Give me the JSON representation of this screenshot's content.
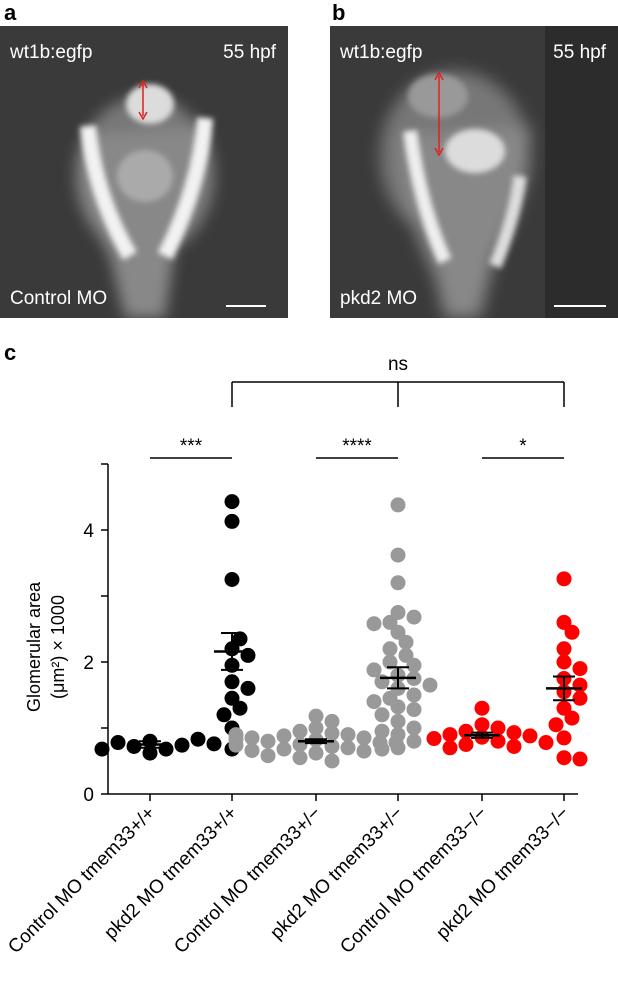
{
  "panels": {
    "a": {
      "letter": "a",
      "strain": "wt1b:egfp",
      "stage": "55 hpf",
      "condition": "Control MO"
    },
    "b": {
      "letter": "b",
      "strain": "wt1b:egfp",
      "stage": "55 hpf",
      "condition": "pkd2 MO"
    }
  },
  "chart_data": {
    "panel_letter": "c",
    "type": "scatter",
    "ylabel": "Glomerular area (μm²) × 1000",
    "ylim": [
      0,
      5
    ],
    "yticks": [
      0,
      2,
      4
    ],
    "categories": [
      "Control MO tmem33+/+",
      "pkd2 MO tmem33+/+",
      "Control MO tmem33+/−",
      "pkd2 MO tmem33+/−",
      "Control MO tmem33−/−",
      "pkd2 MO tmem33−/−"
    ],
    "series": [
      {
        "color": "#000000",
        "mean": 0.75,
        "sem": 0.05,
        "points": [
          0.62,
          0.68,
          0.72,
          0.74,
          0.78,
          0.8,
          0.83,
          0.68,
          0.76
        ]
      },
      {
        "color": "#000000",
        "mean": 2.16,
        "sem": 0.28,
        "points": [
          4.43,
          4.13,
          3.25,
          2.2,
          2.1,
          1.95,
          1.7,
          1.6,
          1.45,
          1.3,
          1.2,
          1.0,
          0.68,
          2.35
        ]
      },
      {
        "color": "#999999",
        "mean": 0.8,
        "sem": 0.03,
        "points": [
          1.18,
          1.1,
          1.0,
          0.95,
          0.92,
          0.9,
          0.88,
          0.85,
          0.82,
          0.8,
          0.78,
          0.75,
          0.72,
          0.7,
          0.68,
          0.65,
          0.62,
          0.58,
          0.55,
          0.5,
          0.85,
          0.78,
          0.74,
          0.9,
          0.66,
          0.83
        ]
      },
      {
        "color": "#999999",
        "mean": 1.76,
        "sem": 0.16,
        "points": [
          4.38,
          3.62,
          3.2,
          2.75,
          2.68,
          2.6,
          2.58,
          2.45,
          2.3,
          2.2,
          2.1,
          2.0,
          1.95,
          1.88,
          1.8,
          1.75,
          1.7,
          1.65,
          1.6,
          1.5,
          1.45,
          1.4,
          1.32,
          1.28,
          1.2,
          1.1,
          1.0,
          0.9,
          0.8,
          0.7,
          0.68,
          0.95
        ]
      },
      {
        "color": "#ff0000",
        "mean": 0.89,
        "sem": 0.04,
        "points": [
          1.3,
          1.05,
          1.0,
          0.95,
          0.93,
          0.9,
          0.88,
          0.86,
          0.84,
          0.8,
          0.78,
          0.75,
          0.72,
          0.7
        ]
      },
      {
        "color": "#ff0000",
        "mean": 1.6,
        "sem": 0.18,
        "points": [
          3.26,
          2.6,
          2.45,
          2.2,
          2.0,
          1.9,
          1.75,
          1.65,
          1.55,
          1.45,
          1.3,
          1.15,
          1.05,
          0.85,
          0.55,
          0.53
        ]
      }
    ],
    "comparisons": [
      {
        "from": 0,
        "to": 1,
        "label": "***"
      },
      {
        "from": 2,
        "to": 3,
        "label": "****"
      },
      {
        "from": 4,
        "to": 5,
        "label": "*"
      }
    ],
    "group_comparison": {
      "groups": [
        1,
        3,
        5
      ],
      "label": "ns"
    }
  }
}
